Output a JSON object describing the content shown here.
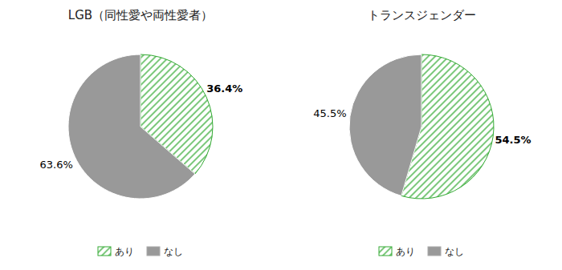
{
  "chart_data": [
    {
      "type": "pie",
      "title": "LGB（同性愛や両性愛者）",
      "categories": [
        "あり",
        "なし"
      ],
      "values": [
        36.4,
        63.6
      ],
      "value_labels": [
        "36.4%",
        "63.6%"
      ],
      "colors": [
        "#33aa33",
        "#999999"
      ],
      "data_labels": true,
      "legend": "bottom"
    },
    {
      "type": "pie",
      "title": "トランスジェンダー",
      "categories": [
        "あり",
        "なし"
      ],
      "values": [
        54.5,
        45.5
      ],
      "value_labels": [
        "54.5%",
        "45.5%"
      ],
      "colors": [
        "#33aa33",
        "#999999"
      ],
      "data_labels": true,
      "legend": "bottom"
    }
  ]
}
